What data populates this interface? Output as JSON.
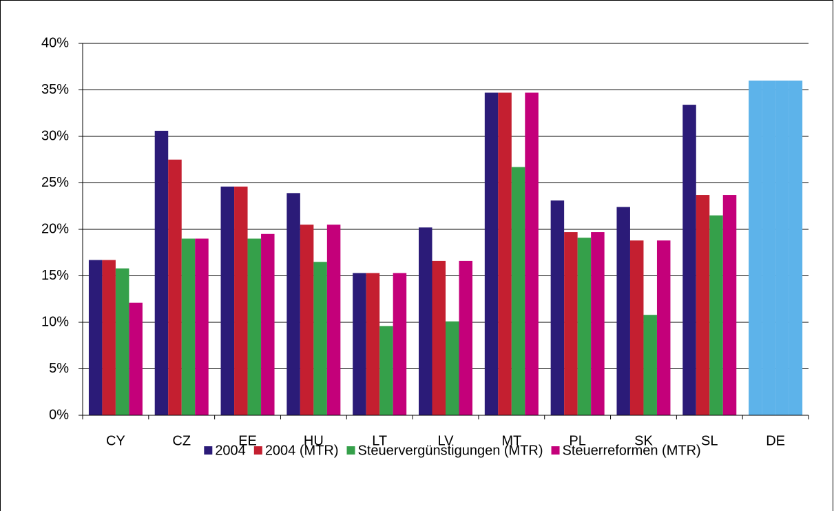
{
  "chart_data": {
    "type": "bar",
    "categories": [
      "CY",
      "CZ",
      "EE",
      "HU",
      "LT",
      "LV",
      "MT",
      "PL",
      "SK",
      "SL",
      "DE"
    ],
    "series": [
      {
        "name": "2004",
        "color": "#2b1b78",
        "colors": [
          "#2b1b78",
          "#2b1b78",
          "#2b1b78",
          "#2b1b78",
          "#2b1b78",
          "#2b1b78",
          "#2b1b78",
          "#2b1b78",
          "#2b1b78",
          "#2b1b78",
          "#5db3ea"
        ],
        "values": [
          16.7,
          30.6,
          24.6,
          23.9,
          15.3,
          20.2,
          34.7,
          23.1,
          22.4,
          33.4,
          36
        ]
      },
      {
        "name": "2004 (MTR)",
        "color": "#c41f30",
        "colors": [
          "#c41f30",
          "#c41f30",
          "#c41f30",
          "#c41f30",
          "#c41f30",
          "#c41f30",
          "#c41f30",
          "#c41f30",
          "#c41f30",
          "#c41f30",
          "#5db3ea"
        ],
        "values": [
          16.7,
          27.5,
          24.6,
          20.5,
          15.3,
          16.6,
          34.7,
          19.7,
          18.8,
          23.7,
          36
        ]
      },
      {
        "name": "Steuervergünstigungen (MTR)",
        "color": "#35a04a",
        "colors": [
          "#35a04a",
          "#35a04a",
          "#35a04a",
          "#35a04a",
          "#35a04a",
          "#35a04a",
          "#35a04a",
          "#35a04a",
          "#35a04a",
          "#35a04a",
          "#5db3ea"
        ],
        "values": [
          15.8,
          19.0,
          19.0,
          16.5,
          9.6,
          10.1,
          26.7,
          19.1,
          10.8,
          21.5,
          36
        ]
      },
      {
        "name": "Steuerreformen (MTR)",
        "color": "#c4007a",
        "colors": [
          "#c4007a",
          "#c4007a",
          "#c4007a",
          "#c4007a",
          "#c4007a",
          "#c4007a",
          "#c4007a",
          "#c4007a",
          "#c4007a",
          "#c4007a",
          "#5db3ea"
        ],
        "values": [
          12.1,
          19.0,
          19.5,
          20.5,
          15.3,
          16.6,
          34.7,
          19.7,
          18.8,
          23.7,
          36
        ]
      }
    ],
    "ylim": [
      0,
      40
    ],
    "yticks": [
      {
        "value": 0,
        "label": "0%"
      },
      {
        "value": 5,
        "label": "5%"
      },
      {
        "value": 10,
        "label": "10%"
      },
      {
        "value": 15,
        "label": "15%"
      },
      {
        "value": 20,
        "label": "20%"
      },
      {
        "value": 25,
        "label": "25%"
      },
      {
        "value": 30,
        "label": "30%"
      },
      {
        "value": 35,
        "label": "35%"
      },
      {
        "value": 40,
        "label": "40%"
      }
    ],
    "grid": true,
    "legend": "bottom"
  }
}
